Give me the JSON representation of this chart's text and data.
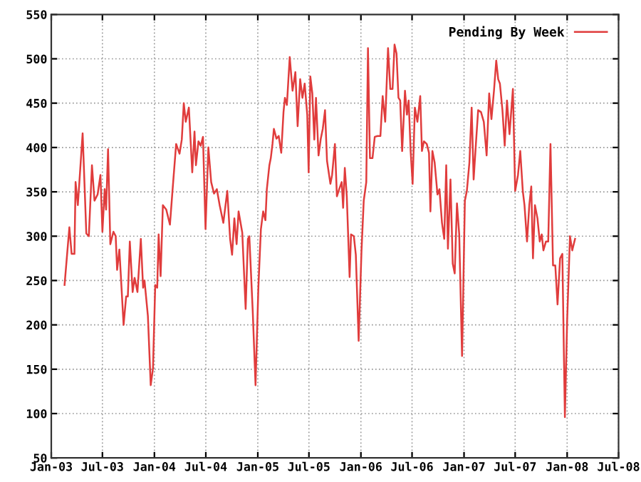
{
  "chart_data": {
    "type": "line",
    "legend": "top right",
    "grid": true,
    "marker": "none",
    "line_style": "solid",
    "xlim": [
      "2003-01-01",
      "2008-07-01"
    ],
    "ylim": [
      50,
      550
    ],
    "xticks": [
      {
        "value": "2003-01-01",
        "label": "Jan-03"
      },
      {
        "value": "2003-07-01",
        "label": "Jul-03"
      },
      {
        "value": "2004-01-01",
        "label": "Jan-04"
      },
      {
        "value": "2004-07-01",
        "label": "Jul-04"
      },
      {
        "value": "2005-01-01",
        "label": "Jan-05"
      },
      {
        "value": "2005-07-01",
        "label": "Jul-05"
      },
      {
        "value": "2006-01-01",
        "label": "Jan-06"
      },
      {
        "value": "2006-07-01",
        "label": "Jul-06"
      },
      {
        "value": "2007-01-01",
        "label": "Jan-07"
      },
      {
        "value": "2007-07-01",
        "label": "Jul-07"
      },
      {
        "value": "2008-01-01",
        "label": "Jan-08"
      },
      {
        "value": "2008-07-01",
        "label": "Jul-08"
      }
    ],
    "yticks": [
      50,
      100,
      150,
      200,
      250,
      300,
      350,
      400,
      450,
      500,
      550
    ],
    "series": [
      {
        "name": "Pending By Week",
        "color": "#e03c3c",
        "x": [
          "2003-02-17",
          "2003-03-06",
          "2003-03-14",
          "2003-03-24",
          "2003-03-28",
          "2003-04-05",
          "2003-04-22",
          "2003-05-05",
          "2003-05-14",
          "2003-05-25",
          "2003-06-03",
          "2003-06-14",
          "2003-06-24",
          "2003-07-01",
          "2003-07-09",
          "2003-07-14",
          "2003-07-21",
          "2003-07-29",
          "2003-08-09",
          "2003-08-17",
          "2003-08-22",
          "2003-08-30",
          "2003-09-14",
          "2003-09-23",
          "2003-09-29",
          "2003-10-06",
          "2003-10-16",
          "2003-10-23",
          "2003-11-02",
          "2003-11-14",
          "2003-11-22",
          "2003-11-27",
          "2003-12-09",
          "2003-12-19",
          "2003-12-27",
          "2004-01-04",
          "2004-01-11",
          "2004-01-16",
          "2004-01-23",
          "2004-01-31",
          "2004-02-12",
          "2004-02-25",
          "2004-03-05",
          "2004-03-18",
          "2004-03-30",
          "2004-04-07",
          "2004-04-14",
          "2004-04-21",
          "2004-05-02",
          "2004-05-14",
          "2004-05-22",
          "2004-05-27",
          "2004-06-05",
          "2004-06-13",
          "2004-06-21",
          "2004-06-30",
          "2004-07-10",
          "2004-07-20",
          "2004-07-30",
          "2004-08-09",
          "2004-08-19",
          "2004-09-01",
          "2004-09-15",
          "2004-09-25",
          "2004-10-02",
          "2004-10-10",
          "2004-10-18",
          "2004-10-25",
          "2004-11-07",
          "2004-11-19",
          "2004-11-27",
          "2004-12-02",
          "2004-12-14",
          "2004-12-24",
          "2005-01-03",
          "2005-01-12",
          "2005-01-20",
          "2005-01-28",
          "2005-02-02",
          "2005-02-11",
          "2005-02-16",
          "2005-02-22",
          "2005-02-27",
          "2005-03-08",
          "2005-03-16",
          "2005-03-25",
          "2005-04-02",
          "2005-04-07",
          "2005-04-14",
          "2005-04-24",
          "2005-05-04",
          "2005-05-14",
          "2005-05-22",
          "2005-05-31",
          "2005-06-08",
          "2005-06-16",
          "2005-06-25",
          "2005-06-30",
          "2005-07-06",
          "2005-07-13",
          "2005-07-20",
          "2005-07-26",
          "2005-08-04",
          "2005-08-12",
          "2005-08-19",
          "2005-08-27",
          "2005-09-03",
          "2005-09-15",
          "2005-09-21",
          "2005-10-01",
          "2005-10-08",
          "2005-10-16",
          "2005-10-25",
          "2005-10-30",
          "2005-11-05",
          "2005-11-12",
          "2005-11-22",
          "2005-11-27",
          "2005-12-07",
          "2005-12-14",
          "2005-12-24",
          "2006-01-03",
          "2006-01-11",
          "2006-01-20",
          "2006-01-26",
          "2006-02-02",
          "2006-02-11",
          "2006-02-19",
          "2006-03-01",
          "2006-03-11",
          "2006-03-19",
          "2006-03-28",
          "2006-04-07",
          "2006-04-15",
          "2006-04-23",
          "2006-04-30",
          "2006-05-07",
          "2006-05-14",
          "2006-05-20",
          "2006-05-27",
          "2006-06-06",
          "2006-06-13",
          "2006-06-19",
          "2006-06-26",
          "2006-07-03",
          "2006-07-11",
          "2006-07-20",
          "2006-07-30",
          "2006-08-05",
          "2006-08-12",
          "2006-08-22",
          "2006-08-30",
          "2006-09-04",
          "2006-09-11",
          "2006-09-19",
          "2006-09-29",
          "2006-10-06",
          "2006-10-15",
          "2006-10-23",
          "2006-10-30",
          "2006-11-05",
          "2006-11-14",
          "2006-11-22",
          "2006-11-29",
          "2006-12-07",
          "2006-12-15",
          "2006-12-25",
          "2007-01-04",
          "2007-01-11",
          "2007-01-20",
          "2007-01-28",
          "2007-02-04",
          "2007-02-12",
          "2007-02-20",
          "2007-03-02",
          "2007-03-12",
          "2007-03-22",
          "2007-03-31",
          "2007-04-08",
          "2007-04-17",
          "2007-04-25",
          "2007-05-02",
          "2007-05-08",
          "2007-05-17",
          "2007-05-25",
          "2007-06-02",
          "2007-06-11",
          "2007-06-23",
          "2007-07-01",
          "2007-07-11",
          "2007-07-19",
          "2007-07-28",
          "2007-08-03",
          "2007-08-12",
          "2007-08-20",
          "2007-08-27",
          "2007-09-02",
          "2007-09-09",
          "2007-09-18",
          "2007-09-26",
          "2007-10-03",
          "2007-10-09",
          "2007-10-18",
          "2007-10-26",
          "2007-11-03",
          "2007-11-12",
          "2007-11-20",
          "2007-11-28",
          "2007-12-07",
          "2007-12-15",
          "2007-12-24",
          "2008-01-01",
          "2008-01-11",
          "2008-01-19",
          "2008-01-29"
        ],
        "values": [
          245,
          310,
          280,
          280,
          361,
          335,
          416,
          303,
          300,
          380,
          340,
          347,
          369,
          305,
          353,
          330,
          398,
          291,
          305,
          300,
          262,
          285,
          200,
          232,
          232,
          294,
          237,
          253,
          237,
          297,
          242,
          250,
          210,
          132,
          151,
          245,
          242,
          302,
          255,
          335,
          330,
          313,
          351,
          404,
          393,
          409,
          450,
          429,
          445,
          372,
          418,
          380,
          407,
          402,
          412,
          308,
          400,
          361,
          348,
          353,
          335,
          315,
          351,
          297,
          279,
          320,
          291,
          328,
          304,
          218,
          297,
          300,
          216,
          132,
          242,
          308,
          328,
          318,
          353,
          380,
          388,
          404,
          421,
          410,
          413,
          394,
          440,
          456,
          448,
          502,
          464,
          485,
          424,
          477,
          456,
          472,
          437,
          372,
          480,
          461,
          409,
          456,
          391,
          410,
          421,
          442,
          385,
          359,
          369,
          404,
          345,
          353,
          361,
          332,
          377,
          345,
          254,
          302,
          300,
          279,
          182,
          283,
          340,
          361,
          512,
          388,
          388,
          412,
          413,
          413,
          458,
          429,
          512,
          466,
          466,
          516,
          506,
          456,
          453,
          396,
          464,
          437,
          453,
          396,
          359,
          445,
          429,
          458,
          396,
          407,
          404,
          394,
          328,
          396,
          383,
          347,
          353,
          315,
          297,
          380,
          286,
          364,
          269,
          258,
          337,
          302,
          165,
          340,
          351,
          383,
          445,
          364,
          404,
          442,
          440,
          429,
          391,
          461,
          432,
          464,
          498,
          477,
          472,
          442,
          402,
          453,
          415,
          466,
          351,
          369,
          396,
          351,
          335,
          294,
          335,
          356,
          275,
          335,
          320,
          294,
          302,
          284,
          294,
          294,
          404,
          267,
          267,
          223,
          275,
          280,
          96,
          205,
          300,
          284,
          297
        ]
      }
    ]
  }
}
